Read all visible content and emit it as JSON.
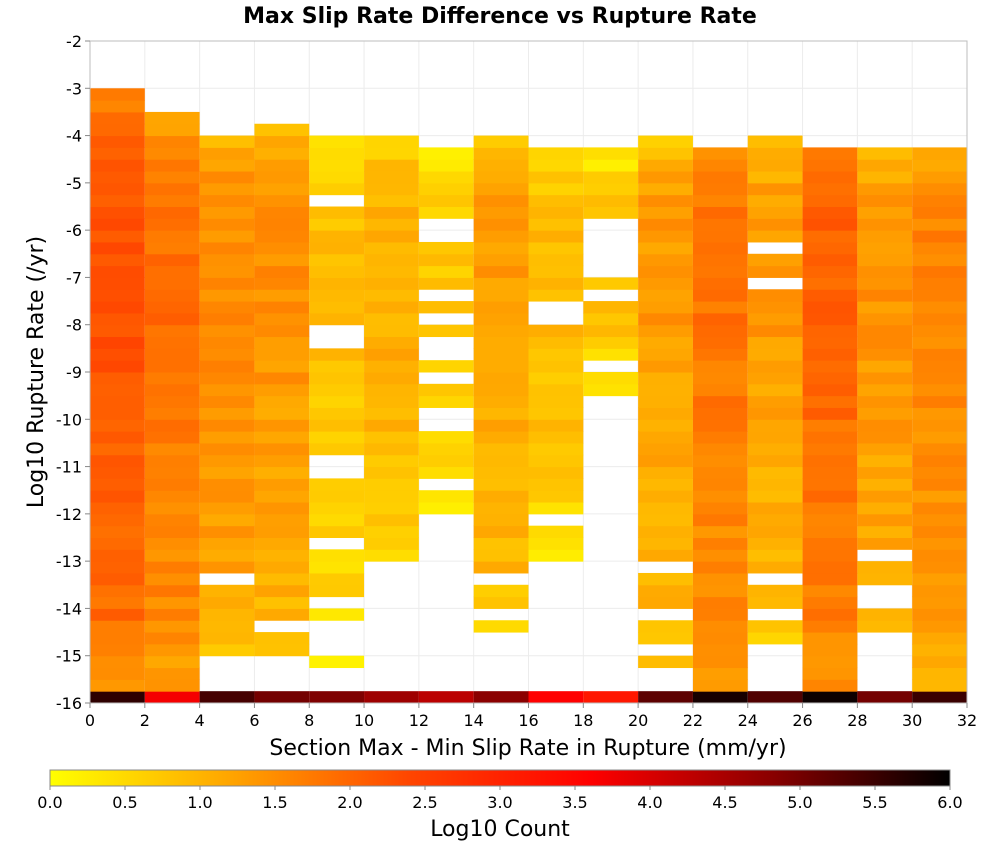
{
  "chart_data": {
    "type": "heatmap",
    "title": "Max Slip Rate Difference vs Rupture Rate",
    "xlabel": "Section Max - Min Slip Rate in Rupture (mm/yr)",
    "ylabel": "Log10 Rupture Rate (/yr)",
    "xlim": [
      0,
      32
    ],
    "ylim": [
      -16,
      -2
    ],
    "x_ticks": [
      "0",
      "2",
      "4",
      "6",
      "8",
      "10",
      "12",
      "14",
      "16",
      "18",
      "20",
      "22",
      "24",
      "26",
      "28",
      "30",
      "32"
    ],
    "y_ticks": [
      "-2",
      "-3",
      "-4",
      "-5",
      "-6",
      "-7",
      "-8",
      "-9",
      "-10",
      "-11",
      "-12",
      "-13",
      "-14",
      "-15",
      "-16"
    ],
    "x_bin_width": 2,
    "y_bin_height": 0.25,
    "colorbar": {
      "label": "Log10 Count",
      "range": [
        0,
        6
      ],
      "ticks": [
        "0.0",
        "0.5",
        "1.0",
        "1.5",
        "2.0",
        "2.5",
        "3.0",
        "3.5",
        "4.0",
        "4.5",
        "5.0",
        "5.5",
        "6.0"
      ],
      "stops": [
        "#ffff00",
        "#ffa500",
        "#ff4500",
        "#ff0000",
        "#8b0000",
        "#000000"
      ]
    },
    "grid": true,
    "columns": [
      {
        "x": [
          0,
          2
        ],
        "y_range": [
          -15.75,
          -3.0
        ],
        "base_value": 1.9,
        "empty_ranges": [],
        "bottom_row_value": 5.6
      },
      {
        "x": [
          2,
          4
        ],
        "y_range": [
          -15.75,
          -3.5
        ],
        "base_value": 1.55,
        "empty_ranges": [],
        "bottom_row_value": 3.7
      },
      {
        "x": [
          4,
          6
        ],
        "y_range": [
          -15.0,
          -4.0
        ],
        "base_value": 1.2,
        "empty_ranges": [
          [
            -13.5,
            -13.25
          ]
        ],
        "bottom_row_value": 5.4
      },
      {
        "x": [
          6,
          8
        ],
        "y_range": [
          -15.0,
          -3.75
        ],
        "base_value": 1.1,
        "empty_ranges": [
          [
            -14.5,
            -14.25
          ]
        ],
        "bottom_row_value": 5.0
      },
      {
        "x": [
          8,
          10
        ],
        "y_range": [
          -15.25,
          -4.0
        ],
        "base_value": 0.55,
        "empty_ranges": [
          [
            -5.5,
            -5.25
          ],
          [
            -8.5,
            -8.0
          ],
          [
            -11.25,
            -10.75
          ],
          [
            -12.75,
            -12.5
          ],
          [
            -14.0,
            -13.75
          ],
          [
            -15.0,
            -14.25
          ]
        ],
        "bottom_row_value": 4.9
      },
      {
        "x": [
          10,
          12
        ],
        "y_range": [
          -13.0,
          -4.0
        ],
        "base_value": 0.75,
        "empty_ranges": [],
        "bottom_row_value": 4.6
      },
      {
        "x": [
          12,
          14
        ],
        "y_range": [
          -12.0,
          -4.25
        ],
        "base_value": 0.4,
        "empty_ranges": [
          [
            -6.25,
            -5.75
          ],
          [
            -7.5,
            -7.25
          ],
          [
            -8.0,
            -7.75
          ],
          [
            -8.75,
            -8.25
          ],
          [
            -9.25,
            -9.0
          ],
          [
            -10.25,
            -9.75
          ],
          [
            -11.5,
            -11.25
          ]
        ],
        "bottom_row_value": 4.3
      },
      {
        "x": [
          14,
          16
        ],
        "y_range": [
          -14.5,
          -4.0
        ],
        "base_value": 0.95,
        "empty_ranges": [
          [
            -13.5,
            -13.25
          ],
          [
            -14.25,
            -14.0
          ]
        ],
        "bottom_row_value": 4.8
      },
      {
        "x": [
          16,
          18
        ],
        "y_range": [
          -13.0,
          -4.25
        ],
        "base_value": 0.6,
        "empty_ranges": [
          [
            -8.0,
            -7.5
          ],
          [
            -12.25,
            -12.0
          ]
        ],
        "bottom_row_value": 3.6
      },
      {
        "x": [
          18,
          20
        ],
        "y_range": [
          -9.5,
          -4.25
        ],
        "base_value": 0.45,
        "empty_ranges": [
          [
            -7.0,
            -5.75
          ],
          [
            -7.5,
            -7.25
          ],
          [
            -9.0,
            -8.75
          ]
        ],
        "bottom_row_value": 3.2
      },
      {
        "x": [
          20,
          22
        ],
        "y_range": [
          -15.25,
          -4.0
        ],
        "base_value": 1.0,
        "empty_ranges": [
          [
            -13.25,
            -13.0
          ],
          [
            -14.25,
            -14.0
          ],
          [
            -15.0,
            -14.75
          ]
        ],
        "bottom_row_value": 5.2
      },
      {
        "x": [
          22,
          24
        ],
        "y_range": [
          -15.75,
          -4.25
        ],
        "base_value": 1.5,
        "empty_ranges": [],
        "bottom_row_value": 5.8
      },
      {
        "x": [
          24,
          26
        ],
        "y_range": [
          -14.75,
          -4.0
        ],
        "base_value": 1.0,
        "empty_ranges": [
          [
            -6.5,
            -6.25
          ],
          [
            -7.25,
            -7.0
          ],
          [
            -13.5,
            -13.25
          ],
          [
            -14.25,
            -14.0
          ]
        ],
        "bottom_row_value": 5.3
      },
      {
        "x": [
          26,
          28
        ],
        "y_range": [
          -15.75,
          -4.25
        ],
        "base_value": 1.7,
        "empty_ranges": [],
        "bottom_row_value": 5.9
      },
      {
        "x": [
          28,
          30
        ],
        "y_range": [
          -14.5,
          -4.25
        ],
        "base_value": 1.1,
        "empty_ranges": [
          [
            -13.0,
            -12.75
          ],
          [
            -14.0,
            -13.5
          ]
        ],
        "bottom_row_value": 5.0
      },
      {
        "x": [
          30,
          32
        ],
        "y_range": [
          -15.75,
          -4.25
        ],
        "base_value": 1.3,
        "empty_ranges": [],
        "bottom_row_value": 5.5
      }
    ]
  }
}
